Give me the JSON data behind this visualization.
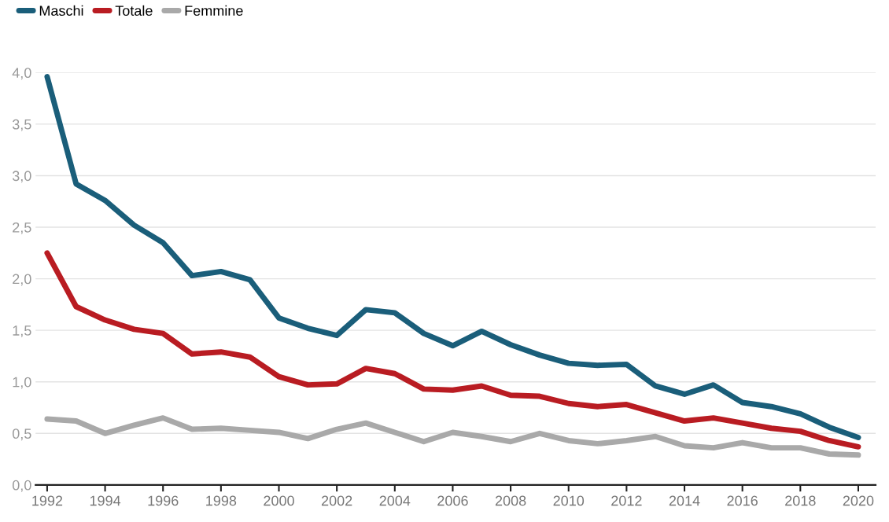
{
  "chart_data": {
    "type": "line",
    "x": [
      1992,
      1993,
      1994,
      1995,
      1996,
      1997,
      1998,
      1999,
      2000,
      2001,
      2002,
      2003,
      2004,
      2005,
      2006,
      2007,
      2008,
      2009,
      2010,
      2011,
      2012,
      2013,
      2014,
      2015,
      2016,
      2017,
      2018,
      2019,
      2020
    ],
    "series": [
      {
        "name": "Maschi",
        "color": "#1a5e7a",
        "values": [
          3.96,
          2.92,
          2.76,
          2.52,
          2.35,
          2.03,
          2.07,
          1.99,
          1.62,
          1.52,
          1.45,
          1.7,
          1.67,
          1.47,
          1.35,
          1.49,
          1.36,
          1.26,
          1.18,
          1.16,
          1.17,
          0.96,
          0.88,
          0.97,
          0.8,
          0.76,
          0.69,
          0.56,
          0.46
        ]
      },
      {
        "name": "Totale",
        "color": "#b91c22",
        "values": [
          2.25,
          1.73,
          1.6,
          1.51,
          1.47,
          1.27,
          1.29,
          1.24,
          1.05,
          0.97,
          0.98,
          1.13,
          1.08,
          0.93,
          0.92,
          0.96,
          0.87,
          0.86,
          0.79,
          0.76,
          0.78,
          0.7,
          0.62,
          0.65,
          0.6,
          0.55,
          0.52,
          0.43,
          0.37
        ]
      },
      {
        "name": "Femmine",
        "color": "#a9a9a9",
        "values": [
          0.64,
          0.62,
          0.5,
          0.58,
          0.65,
          0.54,
          0.55,
          0.53,
          0.51,
          0.45,
          0.54,
          0.6,
          0.51,
          0.42,
          0.51,
          0.47,
          0.42,
          0.5,
          0.43,
          0.4,
          0.43,
          0.47,
          0.38,
          0.36,
          0.41,
          0.36,
          0.36,
          0.3,
          0.29
        ]
      }
    ],
    "xlim": [
      1991.6,
      2020.6
    ],
    "xticks": [
      1992,
      1994,
      1996,
      1998,
      2000,
      2002,
      2004,
      2006,
      2008,
      2010,
      2012,
      2014,
      2016,
      2018,
      2020
    ],
    "ylim": [
      0,
      4
    ],
    "yticks": [
      {
        "value": 0,
        "label": "0,0"
      },
      {
        "value": 0.5,
        "label": "0,5"
      },
      {
        "value": 1,
        "label": "1,0"
      },
      {
        "value": 1.5,
        "label": "1,5"
      },
      {
        "value": 2,
        "label": "2,0"
      },
      {
        "value": 2.5,
        "label": "2,5"
      },
      {
        "value": 3,
        "label": "3,0"
      },
      {
        "value": 3.5,
        "label": "3,5"
      },
      {
        "value": 4,
        "label": "4,0"
      }
    ],
    "grid": "y",
    "legend": "top left",
    "marker": "none",
    "line_style": "solid"
  }
}
